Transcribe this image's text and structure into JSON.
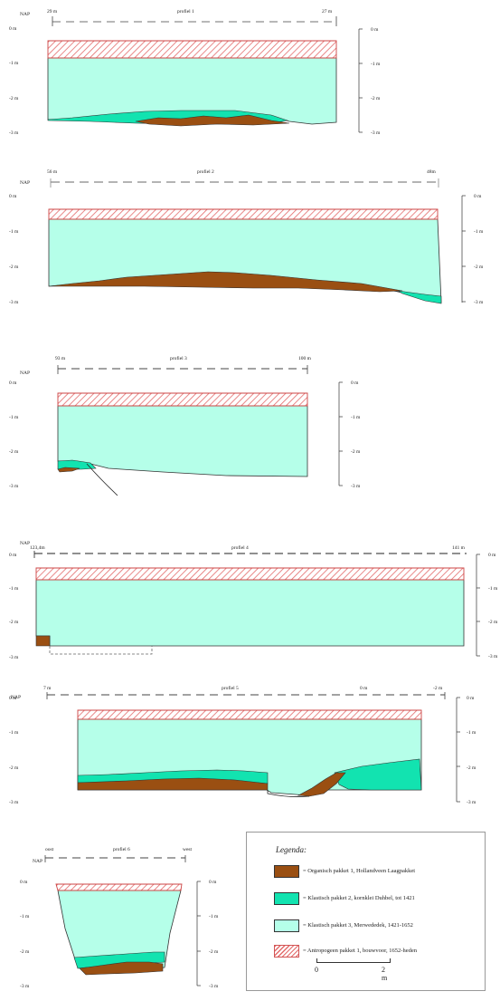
{
  "colors": {
    "organisch": "#9a4f12",
    "klastisch_2": "#12e3b0",
    "klastisch_3": "#b5ffe9",
    "antropogeen_hatch": "#e36b6b"
  },
  "profiles": [
    {
      "title": "profiel 1",
      "start": "29 m",
      "end": "27 m",
      "nap": "NAP",
      "left_ticks": [
        "0 m",
        "-1 m",
        "-2 m",
        "-3 m"
      ],
      "right_ticks": [
        "0 m",
        "-1 m",
        "-2 m",
        "-3 m"
      ]
    },
    {
      "title": "profiel 2",
      "start": "56 m",
      "end": "48m",
      "nap": "NAP",
      "left_ticks": [
        "0 m",
        "-1 m",
        "-2 m",
        "-3 m"
      ],
      "right_ticks": [
        "0 m",
        "-1 m",
        "-2 m",
        "-3 m"
      ]
    },
    {
      "title": "profiel 3",
      "start": "93 m",
      "end": "100 m",
      "nap": "NAP",
      "left_ticks": [
        "0 m",
        "-1 m",
        "-2 m",
        "-3 m"
      ],
      "right_ticks": [
        "0 m",
        "-1 m",
        "-2 m",
        "-3 m"
      ]
    },
    {
      "title": "profiel 4",
      "start": "123,4m",
      "end": "141 m",
      "nap": "NAP",
      "left_ticks": [
        "0 m",
        "-1 m",
        "-2 m",
        "-3 m"
      ],
      "right_ticks": [
        "0 m",
        "-1 m",
        "-2 m",
        "-3 m"
      ]
    },
    {
      "title": "profiel 5",
      "start": "7 m",
      "mid": "0 m",
      "end": "-2 m",
      "nap": "NAP",
      "left_ticks": [
        "0 m",
        "-1 m",
        "-2 m",
        "-3 m"
      ],
      "right_ticks": [
        "0 m",
        "-1 m",
        "-2 m",
        "-3 m"
      ]
    },
    {
      "title": "profiel 6",
      "start": "oost",
      "end": "west",
      "nap": "NAP",
      "left_ticks": [
        "0 m",
        "-1 m",
        "-2 m",
        "-3 m"
      ],
      "right_ticks": [
        "0 m",
        "-1 m",
        "-2 m",
        "-3 m"
      ]
    }
  ],
  "legend": {
    "title": "Legenda:",
    "items": [
      {
        "label": "= Organisch pakket 1, Hollandveen Laagpakket"
      },
      {
        "label": "= Klastisch pakket 2, kornklei Duhbel, tot 1421"
      },
      {
        "label": "= Klastisch pakket 3, Merwededek, 1421-1652"
      },
      {
        "label": "= Antropogeen pakket 1, bouwvoor, 1652-heden"
      }
    ],
    "scale": {
      "left": "0",
      "right": "2 m"
    }
  }
}
